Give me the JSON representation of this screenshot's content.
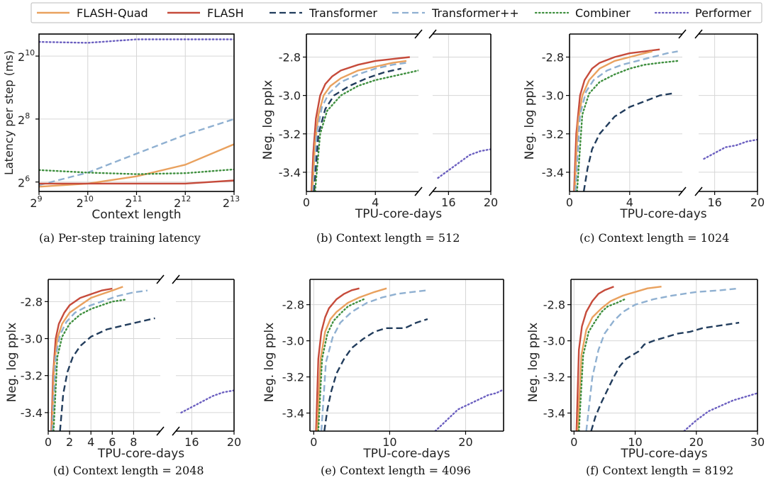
{
  "legend": {
    "entries": [
      {
        "name": "FLASH-Quad",
        "color": "#e9a15e",
        "dash": "solid"
      },
      {
        "name": "FLASH",
        "color": "#c64b3b",
        "dash": "solid"
      },
      {
        "name": "Transformer",
        "color": "#213c5c",
        "dash": "dashed"
      },
      {
        "name": "Transformer++",
        "color": "#8fb0d1",
        "dash": "dashed"
      },
      {
        "name": "Combiner",
        "color": "#3e8f3e",
        "dash": "dotted"
      },
      {
        "name": "Performer",
        "color": "#6b5fc0",
        "dash": "dotted"
      }
    ]
  },
  "chart_data": [
    {
      "type": "line",
      "panel": "a",
      "caption": "(a)  Per-step training latency",
      "xlabel": "Context length",
      "ylabel": "Latency per step (ms)",
      "xscale": "log2",
      "yscale": "log2",
      "xlim": [
        9,
        13
      ],
      "ylim": [
        5.7,
        10.7
      ],
      "xticks": [
        {
          "v": 9,
          "label": "9"
        },
        {
          "v": 10,
          "label": "10"
        },
        {
          "v": 11,
          "label": "11"
        },
        {
          "v": 12,
          "label": "12"
        },
        {
          "v": 13,
          "label": "13"
        }
      ],
      "yticks": [
        {
          "v": 6,
          "label": "6"
        },
        {
          "v": 8,
          "label": "8"
        },
        {
          "v": 10,
          "label": "10"
        }
      ],
      "tick_base": "2",
      "series": [
        {
          "name": "Performer",
          "x": [
            9,
            10,
            11,
            12,
            13
          ],
          "y": [
            10.45,
            10.42,
            10.53,
            10.53,
            10.53
          ]
        },
        {
          "name": "Transformer++",
          "x": [
            9,
            10,
            11,
            12,
            13
          ],
          "y": [
            5.9,
            6.3,
            6.9,
            7.5,
            8.0
          ]
        },
        {
          "name": "FLASH-Quad",
          "x": [
            9,
            10,
            11,
            12,
            13
          ],
          "y": [
            5.85,
            5.95,
            6.18,
            6.55,
            7.2
          ]
        },
        {
          "name": "Combiner",
          "x": [
            9,
            10,
            11,
            12,
            13
          ],
          "y": [
            6.38,
            6.3,
            6.25,
            6.28,
            6.4
          ]
        },
        {
          "name": "FLASH",
          "x": [
            9,
            10,
            11,
            12,
            13
          ],
          "y": [
            5.95,
            5.95,
            5.95,
            5.95,
            6.05
          ]
        }
      ]
    },
    {
      "type": "line",
      "panel": "b",
      "caption": "(b)  Context length = 512",
      "xlabel": "TPU-core-days",
      "ylabel": "Neg. log pplx",
      "ylim": [
        -3.5,
        -2.68
      ],
      "yticks": [
        -2.8,
        -3.0,
        -3.2,
        -3.4
      ],
      "left_xlim": [
        0,
        6.5
      ],
      "left_xticks": [
        0,
        4
      ],
      "right_xlim": [
        14.5,
        20
      ],
      "right_xticks": [
        16,
        20
      ],
      "series": [
        {
          "name": "FLASH",
          "x": [
            0.3,
            0.4,
            0.55,
            0.8,
            1.1,
            1.5,
            2,
            3,
            4,
            5,
            6
          ],
          "y": [
            -3.5,
            -3.3,
            -3.12,
            -3.0,
            -2.94,
            -2.9,
            -2.87,
            -2.84,
            -2.82,
            -2.81,
            -2.8
          ]
        },
        {
          "name": "FLASH-Quad",
          "x": [
            0.35,
            0.5,
            0.7,
            1,
            1.4,
            2,
            3,
            4,
            5,
            5.8
          ],
          "y": [
            -3.5,
            -3.25,
            -3.1,
            -3.0,
            -2.95,
            -2.91,
            -2.87,
            -2.85,
            -2.83,
            -2.82
          ]
        },
        {
          "name": "Transformer++",
          "x": [
            0.4,
            0.6,
            0.9,
            1.3,
            2,
            3,
            4,
            5,
            5.8
          ],
          "y": [
            -3.5,
            -3.2,
            -3.06,
            -2.99,
            -2.93,
            -2.89,
            -2.86,
            -2.84,
            -2.83
          ]
        },
        {
          "name": "Transformer",
          "x": [
            0.45,
            0.7,
            1.1,
            1.6,
            2.5,
            3.5,
            4.5,
            5.5
          ],
          "y": [
            -3.5,
            -3.2,
            -3.07,
            -3.0,
            -2.95,
            -2.91,
            -2.88,
            -2.86
          ]
        },
        {
          "name": "Combiner",
          "x": [
            0.5,
            0.8,
            1.2,
            2,
            3,
            4,
            5,
            6.5
          ],
          "y": [
            -3.5,
            -3.2,
            -3.08,
            -3.0,
            -2.95,
            -2.92,
            -2.9,
            -2.87
          ]
        },
        {
          "name": "Performer",
          "x": [
            15,
            16,
            17,
            18,
            19,
            20
          ],
          "y": [
            -3.43,
            -3.39,
            -3.35,
            -3.31,
            -3.29,
            -3.28
          ]
        }
      ]
    },
    {
      "type": "line",
      "panel": "c",
      "caption": "(c)  Context length = 1024",
      "xlabel": "TPU-core-days",
      "ylabel": "Neg. log pplx",
      "ylim": [
        -3.5,
        -2.68
      ],
      "yticks": [
        -2.8,
        -3.0,
        -3.2,
        -3.4
      ],
      "left_xlim": [
        0,
        7.5
      ],
      "left_xticks": [
        0,
        4
      ],
      "right_xlim": [
        14.5,
        20
      ],
      "right_xticks": [
        16,
        20
      ],
      "series": [
        {
          "name": "FLASH",
          "x": [
            0.3,
            0.45,
            0.7,
            1,
            1.5,
            2,
            3,
            4,
            5,
            6
          ],
          "y": [
            -3.5,
            -3.2,
            -3.0,
            -2.92,
            -2.86,
            -2.83,
            -2.8,
            -2.78,
            -2.77,
            -2.76
          ]
        },
        {
          "name": "FLASH-Quad",
          "x": [
            0.35,
            0.55,
            0.85,
            1.3,
            2,
            3,
            4,
            5,
            5.5
          ],
          "y": [
            -3.5,
            -3.15,
            -3.0,
            -2.92,
            -2.86,
            -2.82,
            -2.8,
            -2.78,
            -2.77
          ]
        },
        {
          "name": "Transformer++",
          "x": [
            0.4,
            0.7,
            1.1,
            1.6,
            2.5,
            3.5,
            4.5,
            5.5,
            6.5,
            7.2
          ],
          "y": [
            -3.5,
            -3.1,
            -2.98,
            -2.92,
            -2.87,
            -2.84,
            -2.82,
            -2.8,
            -2.78,
            -2.77
          ]
        },
        {
          "name": "Combiner",
          "x": [
            0.5,
            0.85,
            1.3,
            2,
            3,
            4,
            5,
            6,
            7.2
          ],
          "y": [
            -3.5,
            -3.1,
            -2.99,
            -2.93,
            -2.89,
            -2.86,
            -2.84,
            -2.83,
            -2.82
          ]
        },
        {
          "name": "Transformer",
          "x": [
            0.95,
            1.2,
            1.5,
            2,
            3,
            4,
            5,
            6,
            6.8
          ],
          "y": [
            -3.5,
            -3.38,
            -3.28,
            -3.2,
            -3.11,
            -3.06,
            -3.03,
            -3.0,
            -2.99
          ]
        },
        {
          "name": "Performer",
          "x": [
            15,
            16,
            17,
            18,
            19,
            20
          ],
          "y": [
            -3.33,
            -3.3,
            -3.27,
            -3.26,
            -3.24,
            -3.23
          ]
        }
      ]
    },
    {
      "type": "line",
      "panel": "d",
      "caption": "(d)  Context length = 2048",
      "xlabel": "TPU-core-days",
      "ylabel": "Neg. log pplx",
      "ylim": [
        -3.5,
        -2.68
      ],
      "yticks": [
        -2.8,
        -3.0,
        -3.2,
        -3.4
      ],
      "left_xlim": [
        0,
        10.5
      ],
      "left_xticks": [
        0,
        2,
        4,
        6,
        8
      ],
      "right_xlim": [
        14.5,
        20
      ],
      "right_xticks": [
        16,
        20
      ],
      "series": [
        {
          "name": "FLASH",
          "x": [
            0.3,
            0.45,
            0.7,
            1,
            1.5,
            2,
            3,
            4,
            5,
            6
          ],
          "y": [
            -3.5,
            -3.2,
            -3.0,
            -2.92,
            -2.86,
            -2.82,
            -2.78,
            -2.76,
            -2.74,
            -2.73
          ]
        },
        {
          "name": "FLASH-Quad",
          "x": [
            0.35,
            0.55,
            0.85,
            1.3,
            2,
            3,
            4,
            5,
            6,
            7
          ],
          "y": [
            -3.5,
            -3.15,
            -3.0,
            -2.92,
            -2.86,
            -2.82,
            -2.78,
            -2.76,
            -2.74,
            -2.72
          ]
        },
        {
          "name": "Transformer++",
          "x": [
            0.4,
            0.7,
            1.1,
            1.7,
            2.5,
            3.5,
            5,
            6.5,
            8,
            9.3
          ],
          "y": [
            -3.5,
            -3.1,
            -2.98,
            -2.91,
            -2.86,
            -2.83,
            -2.8,
            -2.77,
            -2.75,
            -2.74
          ]
        },
        {
          "name": "Combiner",
          "x": [
            0.5,
            0.85,
            1.3,
            2,
            3,
            4,
            5,
            6,
            7.2
          ],
          "y": [
            -3.5,
            -3.1,
            -2.99,
            -2.92,
            -2.87,
            -2.84,
            -2.82,
            -2.8,
            -2.79
          ]
        },
        {
          "name": "Transformer",
          "x": [
            1.1,
            1.4,
            1.8,
            2.3,
            3,
            4,
            5.5,
            7,
            8.5,
            10
          ],
          "y": [
            -3.5,
            -3.3,
            -3.18,
            -3.1,
            -3.04,
            -2.99,
            -2.95,
            -2.93,
            -2.91,
            -2.89
          ]
        },
        {
          "name": "Performer",
          "x": [
            15,
            16,
            17,
            18,
            19,
            20
          ],
          "y": [
            -3.4,
            -3.37,
            -3.34,
            -3.31,
            -3.29,
            -3.28
          ]
        }
      ]
    },
    {
      "type": "line",
      "panel": "e",
      "caption": "(e)  Context length = 4096",
      "xlabel": "TPU-core-days",
      "ylabel": "Neg. log pplx",
      "ylim": [
        -3.5,
        -2.66
      ],
      "yticks": [
        -2.8,
        -3.0,
        -3.2,
        -3.4
      ],
      "xlim": [
        -0.5,
        25
      ],
      "xticks": [
        0,
        10,
        20
      ],
      "series": [
        {
          "name": "FLASH",
          "x": [
            0.3,
            0.6,
            1,
            1.5,
            2,
            3,
            4,
            5,
            6
          ],
          "y": [
            -3.5,
            -3.1,
            -2.95,
            -2.87,
            -2.82,
            -2.77,
            -2.74,
            -2.72,
            -2.71
          ]
        },
        {
          "name": "FLASH-Quad",
          "x": [
            0.45,
            0.9,
            1.5,
            2.2,
            3,
            4.5,
            6,
            8,
            9.6
          ],
          "y": [
            -3.5,
            -3.1,
            -2.95,
            -2.88,
            -2.84,
            -2.79,
            -2.76,
            -2.73,
            -2.71
          ]
        },
        {
          "name": "Combiner",
          "x": [
            0.6,
            1.1,
            1.8,
            2.6,
            3.5,
            4.5,
            5.5,
            6.6
          ],
          "y": [
            -3.5,
            -3.1,
            -2.96,
            -2.89,
            -2.85,
            -2.81,
            -2.79,
            -2.77
          ]
        },
        {
          "name": "Transformer++",
          "x": [
            1,
            1.6,
            2.5,
            3.5,
            5,
            7,
            9,
            11,
            13,
            15
          ],
          "y": [
            -3.5,
            -3.12,
            -2.98,
            -2.9,
            -2.84,
            -2.79,
            -2.76,
            -2.74,
            -2.73,
            -2.72
          ]
        },
        {
          "name": "Transformer",
          "x": [
            1.4,
            1.8,
            2.3,
            3,
            4,
            5,
            6.5,
            8,
            9.5,
            11,
            12,
            13.5,
            15
          ],
          "y": [
            -3.5,
            -3.38,
            -3.28,
            -3.18,
            -3.1,
            -3.04,
            -2.99,
            -2.95,
            -2.93,
            -2.93,
            -2.93,
            -2.9,
            -2.88
          ]
        },
        {
          "name": "Performer",
          "x": [
            16,
            17,
            18,
            19,
            20,
            21,
            22,
            23,
            24,
            25
          ],
          "y": [
            -3.5,
            -3.46,
            -3.42,
            -3.38,
            -3.36,
            -3.34,
            -3.32,
            -3.3,
            -3.29,
            -3.27
          ]
        }
      ]
    },
    {
      "type": "line",
      "panel": "f",
      "caption": "(f)  Context length = 8192",
      "xlabel": "TPU-core-days",
      "ylabel": "Neg. log pplx",
      "ylim": [
        -3.5,
        -2.66
      ],
      "yticks": [
        -2.8,
        -3.0,
        -3.2,
        -3.4
      ],
      "xlim": [
        -0.5,
        30
      ],
      "xticks": [
        0,
        10,
        20,
        30
      ],
      "series": [
        {
          "name": "FLASH",
          "x": [
            0.4,
            0.8,
            1.3,
            2,
            3,
            4,
            5,
            6.5
          ],
          "y": [
            -3.5,
            -3.05,
            -2.92,
            -2.84,
            -2.78,
            -2.74,
            -2.72,
            -2.7
          ]
        },
        {
          "name": "FLASH-Quad",
          "x": [
            0.6,
            1.2,
            2,
            3,
            4.5,
            6,
            8,
            10,
            12,
            14.3
          ],
          "y": [
            -3.5,
            -3.08,
            -2.94,
            -2.87,
            -2.82,
            -2.78,
            -2.75,
            -2.73,
            -2.71,
            -2.7
          ]
        },
        {
          "name": "Combiner",
          "x": [
            0.8,
            1.5,
            2.4,
            3.5,
            4.5,
            5.5,
            7,
            8.3
          ],
          "y": [
            -3.5,
            -3.08,
            -2.95,
            -2.89,
            -2.84,
            -2.81,
            -2.79,
            -2.77
          ]
        },
        {
          "name": "Transformer++",
          "x": [
            2,
            3,
            4,
            5,
            6.5,
            8,
            10,
            13,
            16,
            20,
            24,
            27
          ],
          "y": [
            -3.5,
            -3.2,
            -3.05,
            -2.96,
            -2.89,
            -2.84,
            -2.8,
            -2.77,
            -2.75,
            -2.73,
            -2.72,
            -2.71
          ]
        },
        {
          "name": "Transformer",
          "x": [
            2.8,
            3.5,
            4.5,
            5.5,
            6.5,
            7.5,
            8.5,
            9.5,
            10.5,
            11.5,
            13,
            15,
            17,
            19,
            21,
            23,
            25,
            27
          ],
          "y": [
            -3.5,
            -3.42,
            -3.34,
            -3.27,
            -3.2,
            -3.14,
            -3.1,
            -3.08,
            -3.06,
            -3.02,
            -3.0,
            -2.98,
            -2.96,
            -2.95,
            -2.93,
            -2.92,
            -2.91,
            -2.9
          ]
        },
        {
          "name": "Performer",
          "x": [
            18,
            20,
            22,
            24,
            26,
            28,
            30
          ],
          "y": [
            -3.5,
            -3.44,
            -3.39,
            -3.36,
            -3.33,
            -3.31,
            -3.29
          ]
        }
      ]
    }
  ]
}
